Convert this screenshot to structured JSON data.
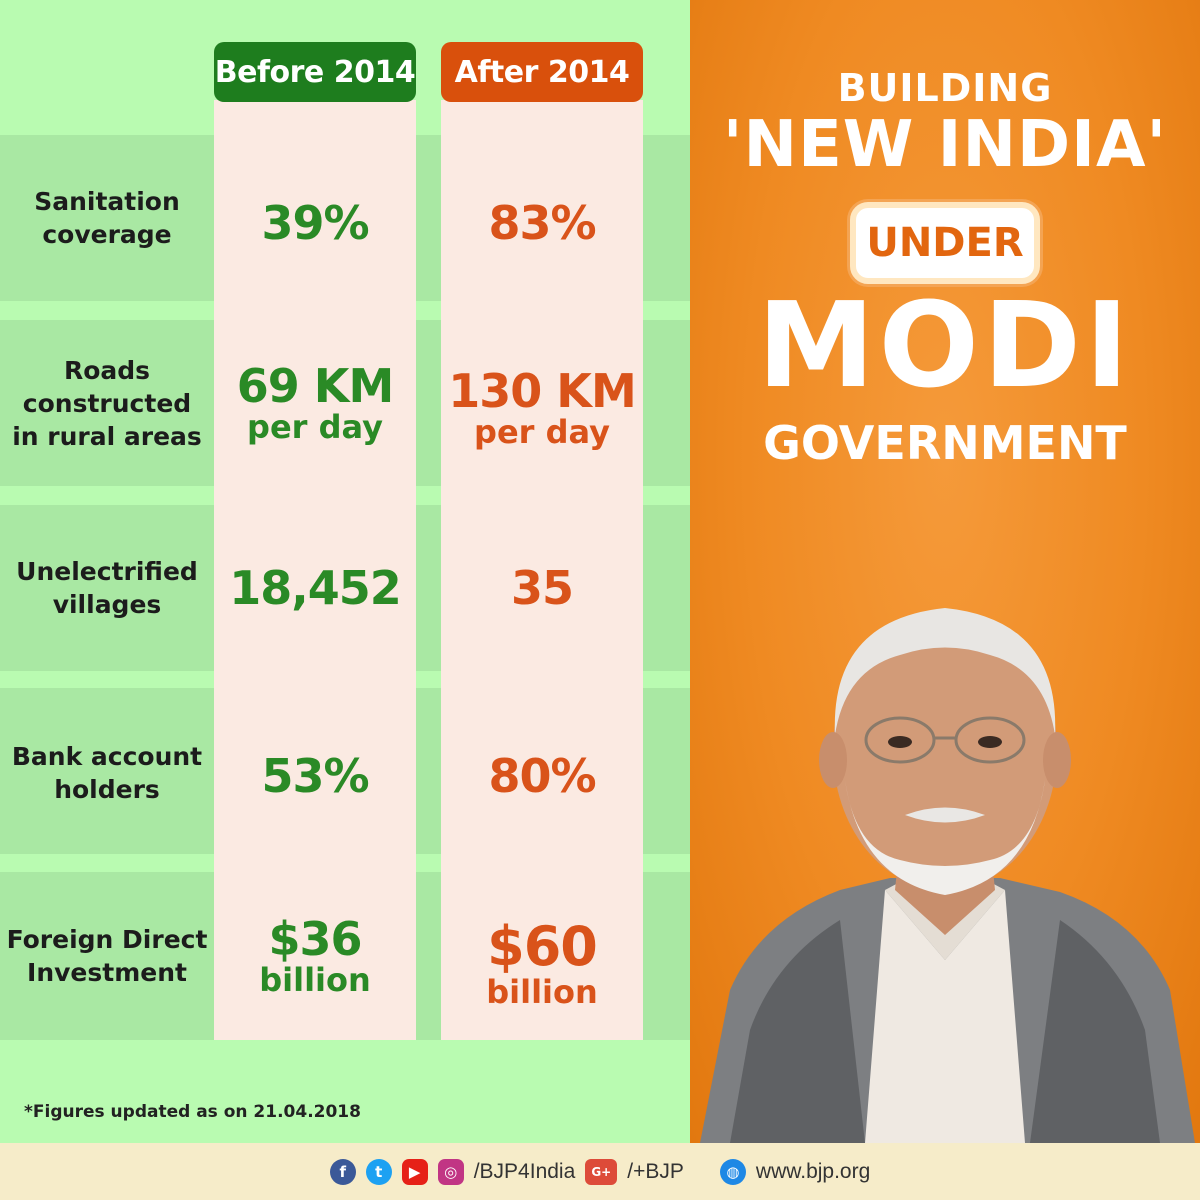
{
  "headers": {
    "before": "Before 2014",
    "after": "After 2014"
  },
  "rows": [
    {
      "label": "Sanitation coverage",
      "label_lines": [
        "Sanitation",
        "coverage"
      ],
      "before": "39%",
      "before_sub": "",
      "after": "83%",
      "after_sub": ""
    },
    {
      "label": "Roads constructed in rural areas",
      "label_lines": [
        "Roads",
        "constructed",
        "in rural areas"
      ],
      "before": "69 KM",
      "before_sub": "per day",
      "after": "130 KM",
      "after_sub": "per day"
    },
    {
      "label": "Unelectrified villages",
      "label_lines": [
        "Unelectrified",
        "villages"
      ],
      "before": "18,452",
      "before_sub": "",
      "after": "35",
      "after_sub": ""
    },
    {
      "label": "Bank account holders",
      "label_lines": [
        "Bank account",
        "holders"
      ],
      "before": "53%",
      "before_sub": "",
      "after": "80%",
      "after_sub": ""
    },
    {
      "label": "Foreign Direct Investment",
      "label_lines": [
        "Foreign Direct",
        "Investment"
      ],
      "before": "$36",
      "before_sub": "billion",
      "after": "$60",
      "after_sub": "billion"
    }
  ],
  "footnote": "*Figures updated as on  21.04.2018",
  "headline": {
    "line1": "BUILDING",
    "line2": "'NEW INDIA'",
    "line3": "UNDER",
    "line4": "MODI",
    "line5": "GOVERNMENT"
  },
  "footer": {
    "social_handle": "/BJP4India",
    "gplus_handle": "/+BJP",
    "website": "www.bjp.org",
    "icons": [
      "facebook-icon",
      "twitter-icon",
      "youtube-icon",
      "instagram-icon",
      "google-plus-icon",
      "globe-icon"
    ]
  },
  "colors": {
    "before_green": "#2a8a26",
    "after_orange": "#d9531a",
    "panel_green": "#b9fbb1",
    "panel_orange": "#ef8a22"
  }
}
